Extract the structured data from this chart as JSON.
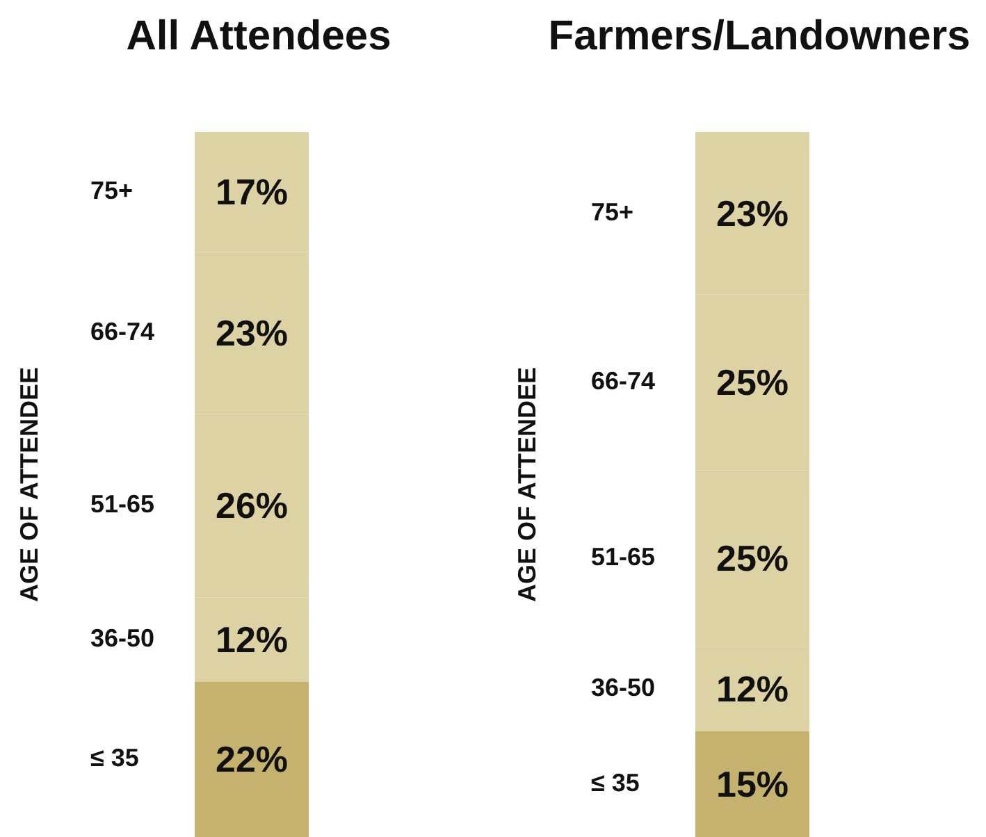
{
  "chart_data": [
    {
      "type": "bar",
      "title": "All Attendees",
      "ylabel": "AGE OF ATTENDEE",
      "stacked": true,
      "categories": [
        null
      ],
      "series": [
        {
          "name": "≤ 35",
          "color": "#c4b26e",
          "values": [
            22
          ],
          "value_labels": [
            "22%"
          ]
        },
        {
          "name": "36-50",
          "color": "#ddd2a4",
          "values": [
            12
          ],
          "value_labels": [
            "12%"
          ]
        },
        {
          "name": "51-65",
          "color": "#ddd2a4",
          "values": [
            26
          ],
          "value_labels": [
            "26%"
          ]
        },
        {
          "name": "66-74",
          "color": "#ddd2a4",
          "values": [
            23
          ],
          "value_labels": [
            "23%"
          ]
        },
        {
          "name": "75+",
          "color": "#ddd2a4",
          "values": [
            17
          ],
          "value_labels": [
            "17%"
          ]
        }
      ],
      "legend": false
    },
    {
      "type": "bar",
      "title": "Farmers/Landowners",
      "ylabel": "AGE OF ATTENDEE",
      "stacked": true,
      "categories": [
        null
      ],
      "series": [
        {
          "name": "≤ 35",
          "color": "#c4b26e",
          "values": [
            15
          ],
          "value_labels": [
            "15%"
          ]
        },
        {
          "name": "36-50",
          "color": "#ddd2a4",
          "values": [
            12
          ],
          "value_labels": [
            "12%"
          ]
        },
        {
          "name": "51-65",
          "color": "#ddd2a4",
          "values": [
            25
          ],
          "value_labels": [
            "25%"
          ]
        },
        {
          "name": "66-74",
          "color": "#ddd2a4",
          "values": [
            25
          ],
          "value_labels": [
            "25%"
          ]
        },
        {
          "name": "75+",
          "color": "#ddd2a4",
          "values": [
            23
          ],
          "value_labels": [
            "23%"
          ]
        }
      ],
      "legend": false
    }
  ]
}
